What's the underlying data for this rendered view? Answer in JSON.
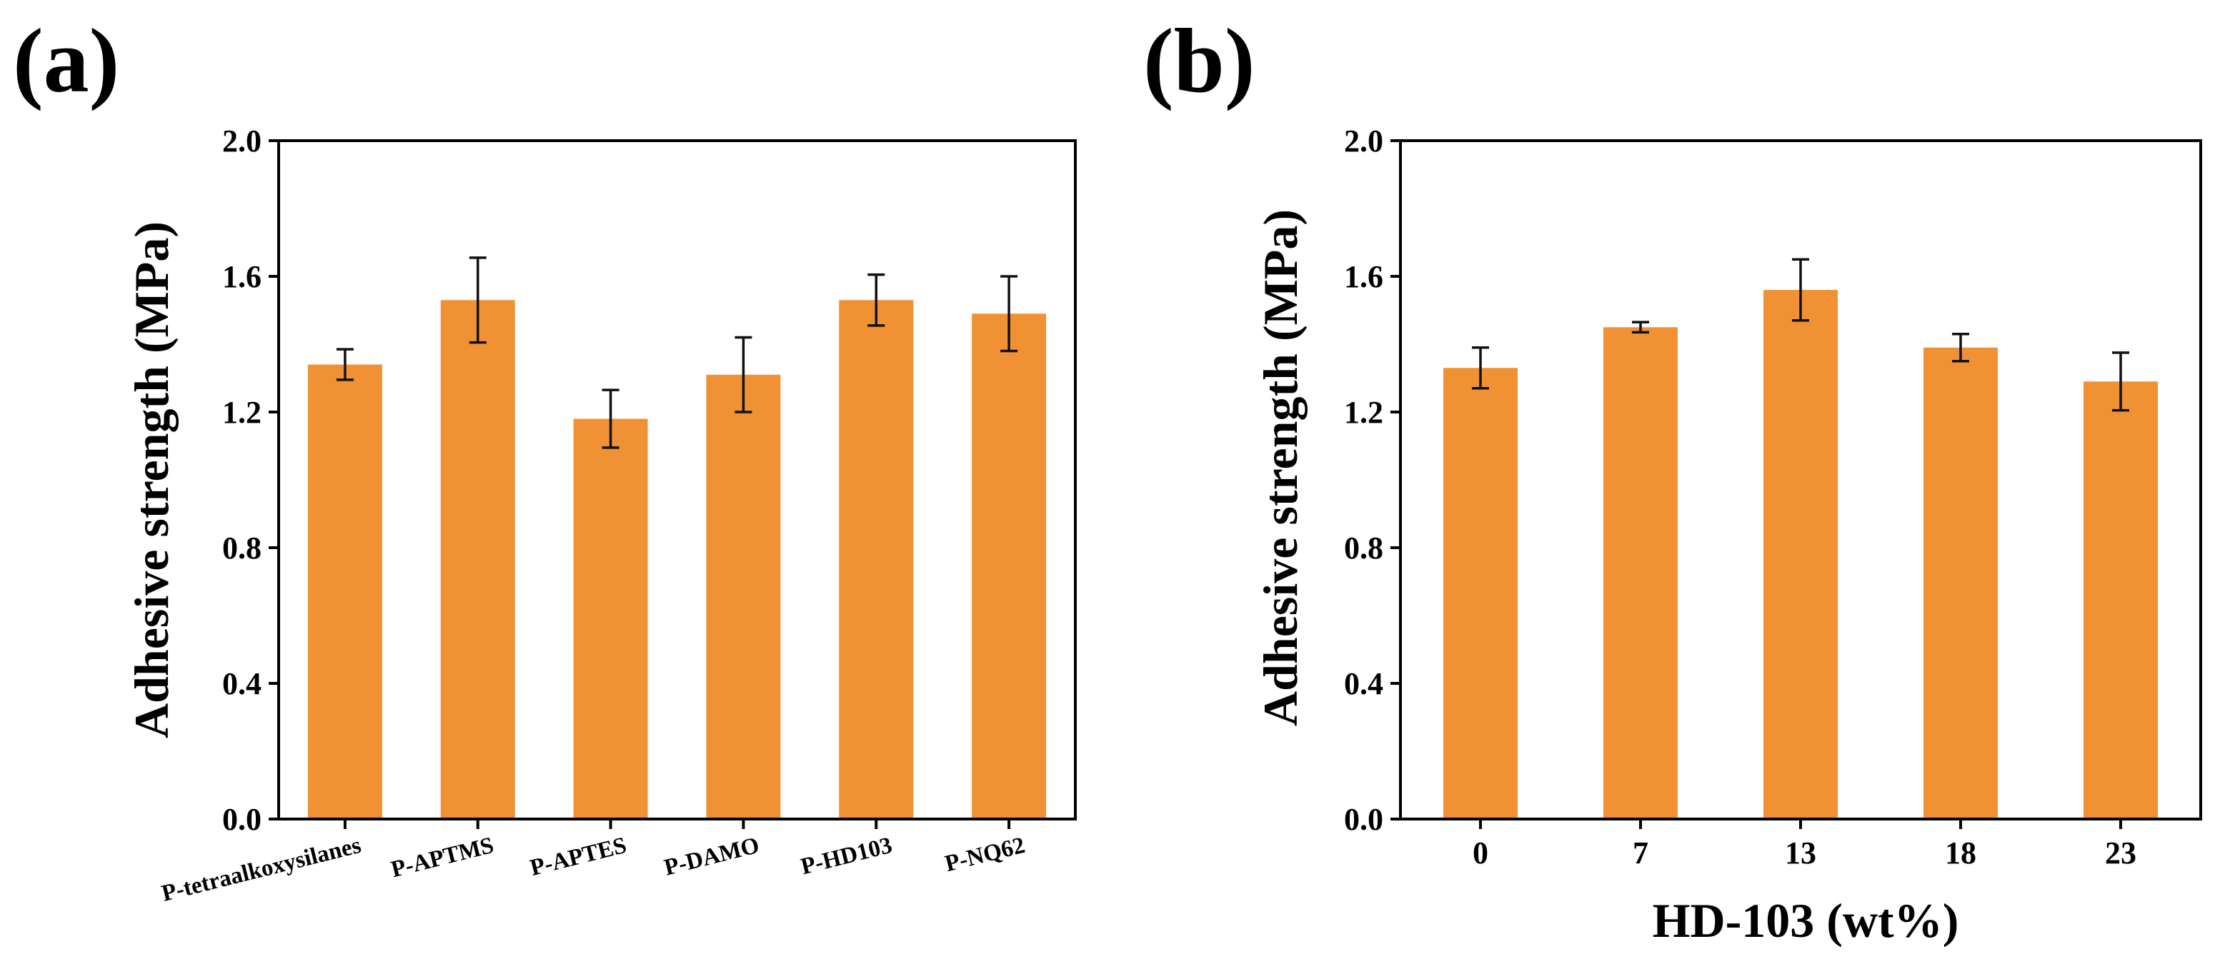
{
  "chart_data": [
    {
      "panel_label": "(a)",
      "type": "bar",
      "categories": [
        "P-tetraalkoxysilanes",
        "P-APTMS",
        "P-APTES",
        "P-DAMO",
        "P-HD103",
        "P-NQ62"
      ],
      "values": [
        1.34,
        1.53,
        1.18,
        1.31,
        1.53,
        1.49
      ],
      "errors": [
        0.045,
        0.125,
        0.085,
        0.11,
        0.075,
        0.11
      ],
      "xlabel": "",
      "ylabel": "Adhesive strength (MPa)",
      "ylim": [
        0.0,
        2.0
      ],
      "yticks": [
        "0.0",
        "0.4",
        "0.8",
        "1.2",
        "1.6",
        "2.0"
      ],
      "bar_color": "#f09234"
    },
    {
      "panel_label": "(b)",
      "type": "bar",
      "categories": [
        "0",
        "7",
        "13",
        "18",
        "23"
      ],
      "values": [
        1.33,
        1.45,
        1.56,
        1.39,
        1.29
      ],
      "errors": [
        0.06,
        0.015,
        0.09,
        0.04,
        0.085
      ],
      "xlabel": "HD-103 (wt%)",
      "ylabel": "Adhesive strength (MPa)",
      "ylim": [
        0.0,
        2.0
      ],
      "yticks": [
        "0.0",
        "0.4",
        "0.8",
        "1.2",
        "1.6",
        "2.0"
      ],
      "bar_color": "#f09234"
    }
  ]
}
